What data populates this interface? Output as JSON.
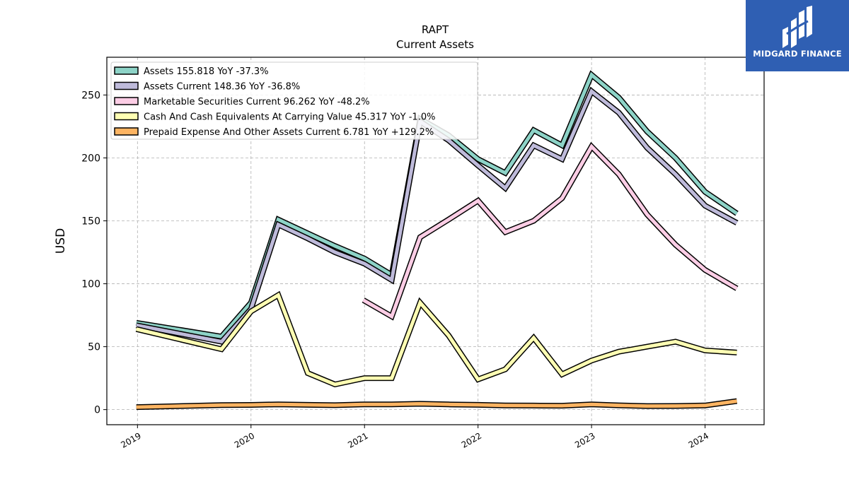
{
  "chart_data": {
    "type": "line",
    "title": "RAPT",
    "subtitle": "Current  Assets",
    "xlabel": "",
    "ylabel": "USD",
    "xlim": [
      2018.73,
      2024.52
    ],
    "ylim": [
      -12,
      280
    ],
    "x_ticks": [
      "2019",
      "2020",
      "2021",
      "2022",
      "2023",
      "2024"
    ],
    "y_ticks": [
      0,
      50,
      100,
      150,
      200,
      250
    ],
    "grid": true,
    "legend_position": "top-left",
    "series": [
      {
        "name": "Assets  155.818 YoY -37.3%",
        "color": "#8dd3c7",
        "points": [
          [
            2018.99,
            69
          ],
          [
            2019.74,
            58
          ],
          [
            2020.0,
            85
          ],
          [
            2020.24,
            151
          ],
          [
            2020.5,
            140
          ],
          [
            2020.74,
            130
          ],
          [
            2021.0,
            120
          ],
          [
            2021.24,
            107
          ],
          [
            2021.49,
            231
          ],
          [
            2021.74,
            218
          ],
          [
            2022.0,
            199
          ],
          [
            2022.24,
            188
          ],
          [
            2022.49,
            222
          ],
          [
            2022.74,
            210
          ],
          [
            2023.0,
            266
          ],
          [
            2023.24,
            248
          ],
          [
            2023.49,
            221
          ],
          [
            2023.74,
            200
          ],
          [
            2024.0,
            173
          ],
          [
            2024.28,
            155.818
          ]
        ]
      },
      {
        "name": "Assets Current  148.36 YoY -36.8%",
        "color": "#bebada",
        "points": [
          [
            2018.99,
            67
          ],
          [
            2019.74,
            54
          ],
          [
            2020.0,
            80
          ],
          [
            2020.24,
            147
          ],
          [
            2020.5,
            136
          ],
          [
            2020.74,
            125
          ],
          [
            2021.0,
            116
          ],
          [
            2021.24,
            103
          ],
          [
            2021.49,
            229
          ],
          [
            2021.74,
            214
          ],
          [
            2022.0,
            194
          ],
          [
            2022.24,
            176
          ],
          [
            2022.49,
            210
          ],
          [
            2022.74,
            199
          ],
          [
            2023.0,
            253
          ],
          [
            2023.24,
            236
          ],
          [
            2023.49,
            208
          ],
          [
            2023.74,
            187
          ],
          [
            2024.0,
            162
          ],
          [
            2024.28,
            148.36
          ]
        ]
      },
      {
        "name": "Marketable Securities Current  96.262 YoY -48.2%",
        "color": "#fccde5",
        "points": [
          [
            2020.99,
            87
          ],
          [
            2021.24,
            74
          ],
          [
            2021.49,
            137
          ],
          [
            2021.74,
            151
          ],
          [
            2022.0,
            166
          ],
          [
            2022.24,
            141
          ],
          [
            2022.49,
            150
          ],
          [
            2022.74,
            168
          ],
          [
            2023.0,
            209
          ],
          [
            2023.24,
            187
          ],
          [
            2023.49,
            155
          ],
          [
            2023.74,
            131
          ],
          [
            2024.0,
            111
          ],
          [
            2024.28,
            96.262
          ]
        ]
      },
      {
        "name": "Cash And Cash Equivalents At Carrying Value  45.317 YoY -1.0%",
        "color": "#ffffb3",
        "points": [
          [
            2018.99,
            64
          ],
          [
            2019.74,
            48
          ],
          [
            2020.0,
            78
          ],
          [
            2020.24,
            91
          ],
          [
            2020.5,
            29
          ],
          [
            2020.74,
            20
          ],
          [
            2021.0,
            25
          ],
          [
            2021.24,
            25
          ],
          [
            2021.49,
            85
          ],
          [
            2021.74,
            59
          ],
          [
            2022.0,
            24
          ],
          [
            2022.24,
            32
          ],
          [
            2022.49,
            57
          ],
          [
            2022.74,
            28
          ],
          [
            2023.0,
            39
          ],
          [
            2023.24,
            46
          ],
          [
            2023.49,
            50
          ],
          [
            2023.74,
            54
          ],
          [
            2024.0,
            47
          ],
          [
            2024.28,
            45.317
          ]
        ]
      },
      {
        "name": "Prepaid Expense And Other Assets Current  6.781 YoY +129.2%",
        "color": "#fdb462",
        "points": [
          [
            2018.99,
            2
          ],
          [
            2019.74,
            3.6
          ],
          [
            2020.0,
            3.7
          ],
          [
            2020.24,
            4.2
          ],
          [
            2020.5,
            3.8
          ],
          [
            2020.74,
            3.5
          ],
          [
            2021.0,
            4.2
          ],
          [
            2021.24,
            4.2
          ],
          [
            2021.49,
            4.6
          ],
          [
            2021.74,
            4.1
          ],
          [
            2022.0,
            3.8
          ],
          [
            2022.24,
            3.3
          ],
          [
            2022.49,
            3.2
          ],
          [
            2022.74,
            3.1
          ],
          [
            2023.0,
            4.2
          ],
          [
            2023.24,
            3.4
          ],
          [
            2023.49,
            2.8
          ],
          [
            2023.74,
            2.9
          ],
          [
            2024.0,
            3.3
          ],
          [
            2024.28,
            6.781
          ]
        ]
      }
    ]
  },
  "logo": {
    "text": "MIDGARD FINANCE",
    "background": "#2f5fb3",
    "icon": "midgard-mark-icon"
  }
}
